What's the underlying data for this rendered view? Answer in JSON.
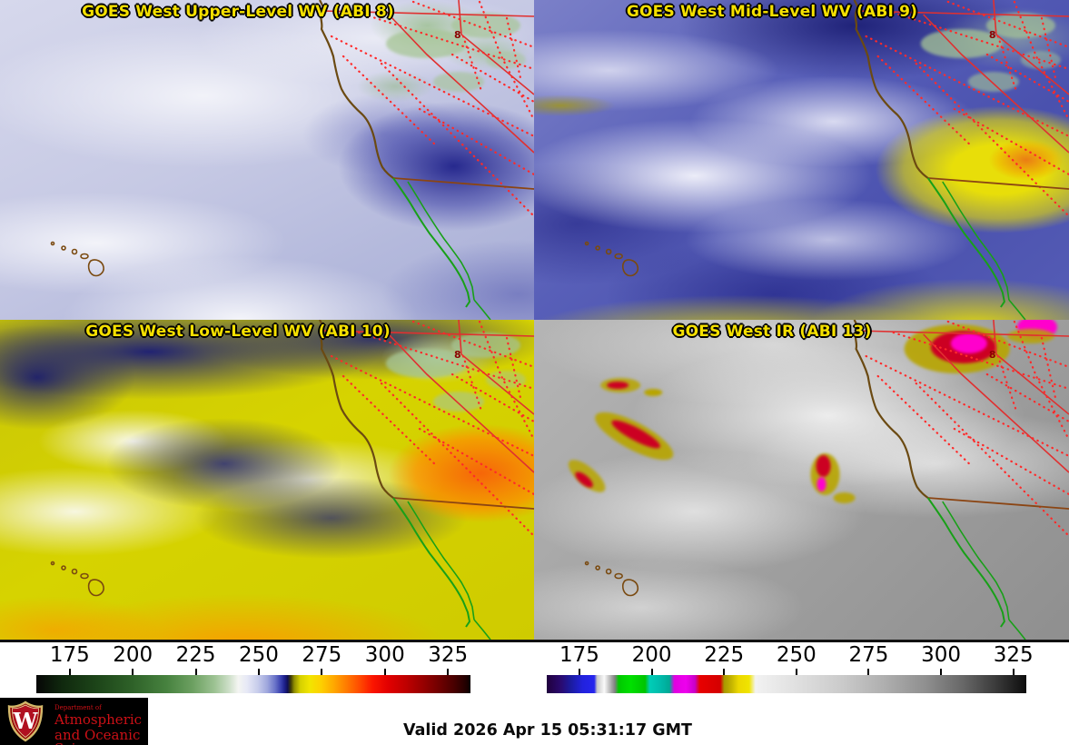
{
  "panels": [
    {
      "title": "GOES West Upper-Level WV (ABI 8)"
    },
    {
      "title": "GOES West Mid-Level WV (ABI 9)"
    },
    {
      "title": "GOES West Low-Level WV (ABI 10)"
    },
    {
      "title": "GOES West IR (ABI 13)"
    }
  ],
  "colorbars": {
    "wv": {
      "ticks": [
        "175",
        "200",
        "225",
        "250",
        "275",
        "300",
        "325"
      ]
    },
    "ir": {
      "ticks": [
        "175",
        "200",
        "225",
        "250",
        "275",
        "300",
        "325"
      ]
    }
  },
  "map": {
    "coast_marker": "8"
  },
  "logo": {
    "dept": "Department of",
    "line1": "Atmospheric",
    "line2": "and Oceanic Sciences",
    "initial": "W"
  },
  "footer": {
    "valid": "Valid 2026 Apr 15 05:31:17 GMT"
  },
  "colors": {
    "title_yellow": "#f5e000",
    "logo_red": "#cc1016",
    "coastline_brown": "#6b4a12",
    "border_red": "#e03030",
    "mexico_green": "#18a018",
    "background": "#ffffff"
  }
}
